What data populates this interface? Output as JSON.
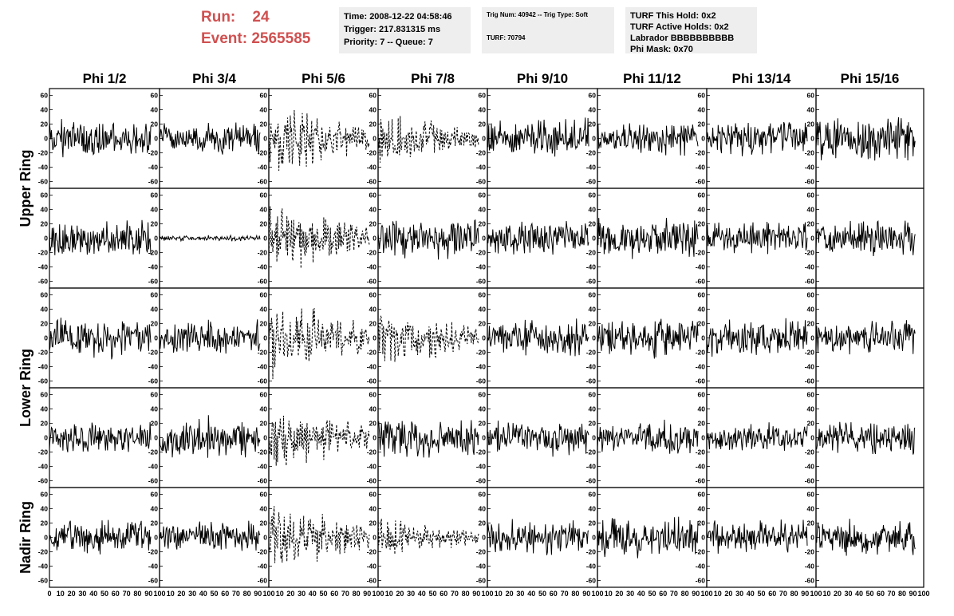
{
  "header": {
    "run_label": "Run:",
    "run_value": "24",
    "event_label": "Event:",
    "event_value": "2565585",
    "time": "Time: 2008-12-22 04:58:46",
    "trigger": "Trigger: 217.831315 ms",
    "priority": "Priority: 7 -- Queue: 7",
    "trig_num": "Trig Num: 40942 -- Trig Type: Soft",
    "turf": "TURF: 70794",
    "turf_this_hold": "TURF This Hold: 0x2",
    "turf_active_holds": "TURF Active Holds: 0x2",
    "labrador": "Labrador BBBBBBBBBB",
    "phi_mask": "Phi Mask: 0x70"
  },
  "chart_data": {
    "type": "line",
    "columns": [
      "Phi 1/2",
      "Phi 3/4",
      "Phi 5/6",
      "Phi 7/8",
      "Phi 9/10",
      "Phi 11/12",
      "Phi 13/14",
      "Phi 15/16"
    ],
    "rows": [
      "Upper Ring",
      "Upper Ring",
      "Lower Ring",
      "Lower Ring",
      "Nadir Ring"
    ],
    "row_labels": [
      {
        "label": "Upper Ring",
        "rows": [
          0,
          1
        ]
      },
      {
        "label": "Lower Ring",
        "rows": [
          2,
          3
        ]
      },
      {
        "label": "Nadir Ring",
        "rows": [
          4,
          4
        ]
      }
    ],
    "xlim": [
      0,
      100
    ],
    "ylim": [
      -65,
      65
    ],
    "y_ticks": [
      60,
      40,
      20,
      0,
      -20,
      -40,
      -60
    ],
    "x_ticks": [
      0,
      10,
      20,
      30,
      40,
      50,
      60,
      70,
      80,
      90,
      100
    ],
    "waveform_extent_x": 92,
    "waveform_amplitude": [
      [
        20,
        16,
        30,
        22,
        20,
        18,
        18,
        22
      ],
      [
        18,
        3,
        30,
        22,
        18,
        22,
        18,
        20
      ],
      [
        20,
        18,
        32,
        26,
        20,
        20,
        20,
        18
      ],
      [
        16,
        22,
        28,
        20,
        18,
        18,
        16,
        18
      ],
      [
        18,
        16,
        30,
        18,
        18,
        22,
        18,
        18
      ]
    ],
    "dashed_columns": [
      2,
      3
    ],
    "dashed_rows_col3": [
      0,
      2,
      4
    ]
  }
}
